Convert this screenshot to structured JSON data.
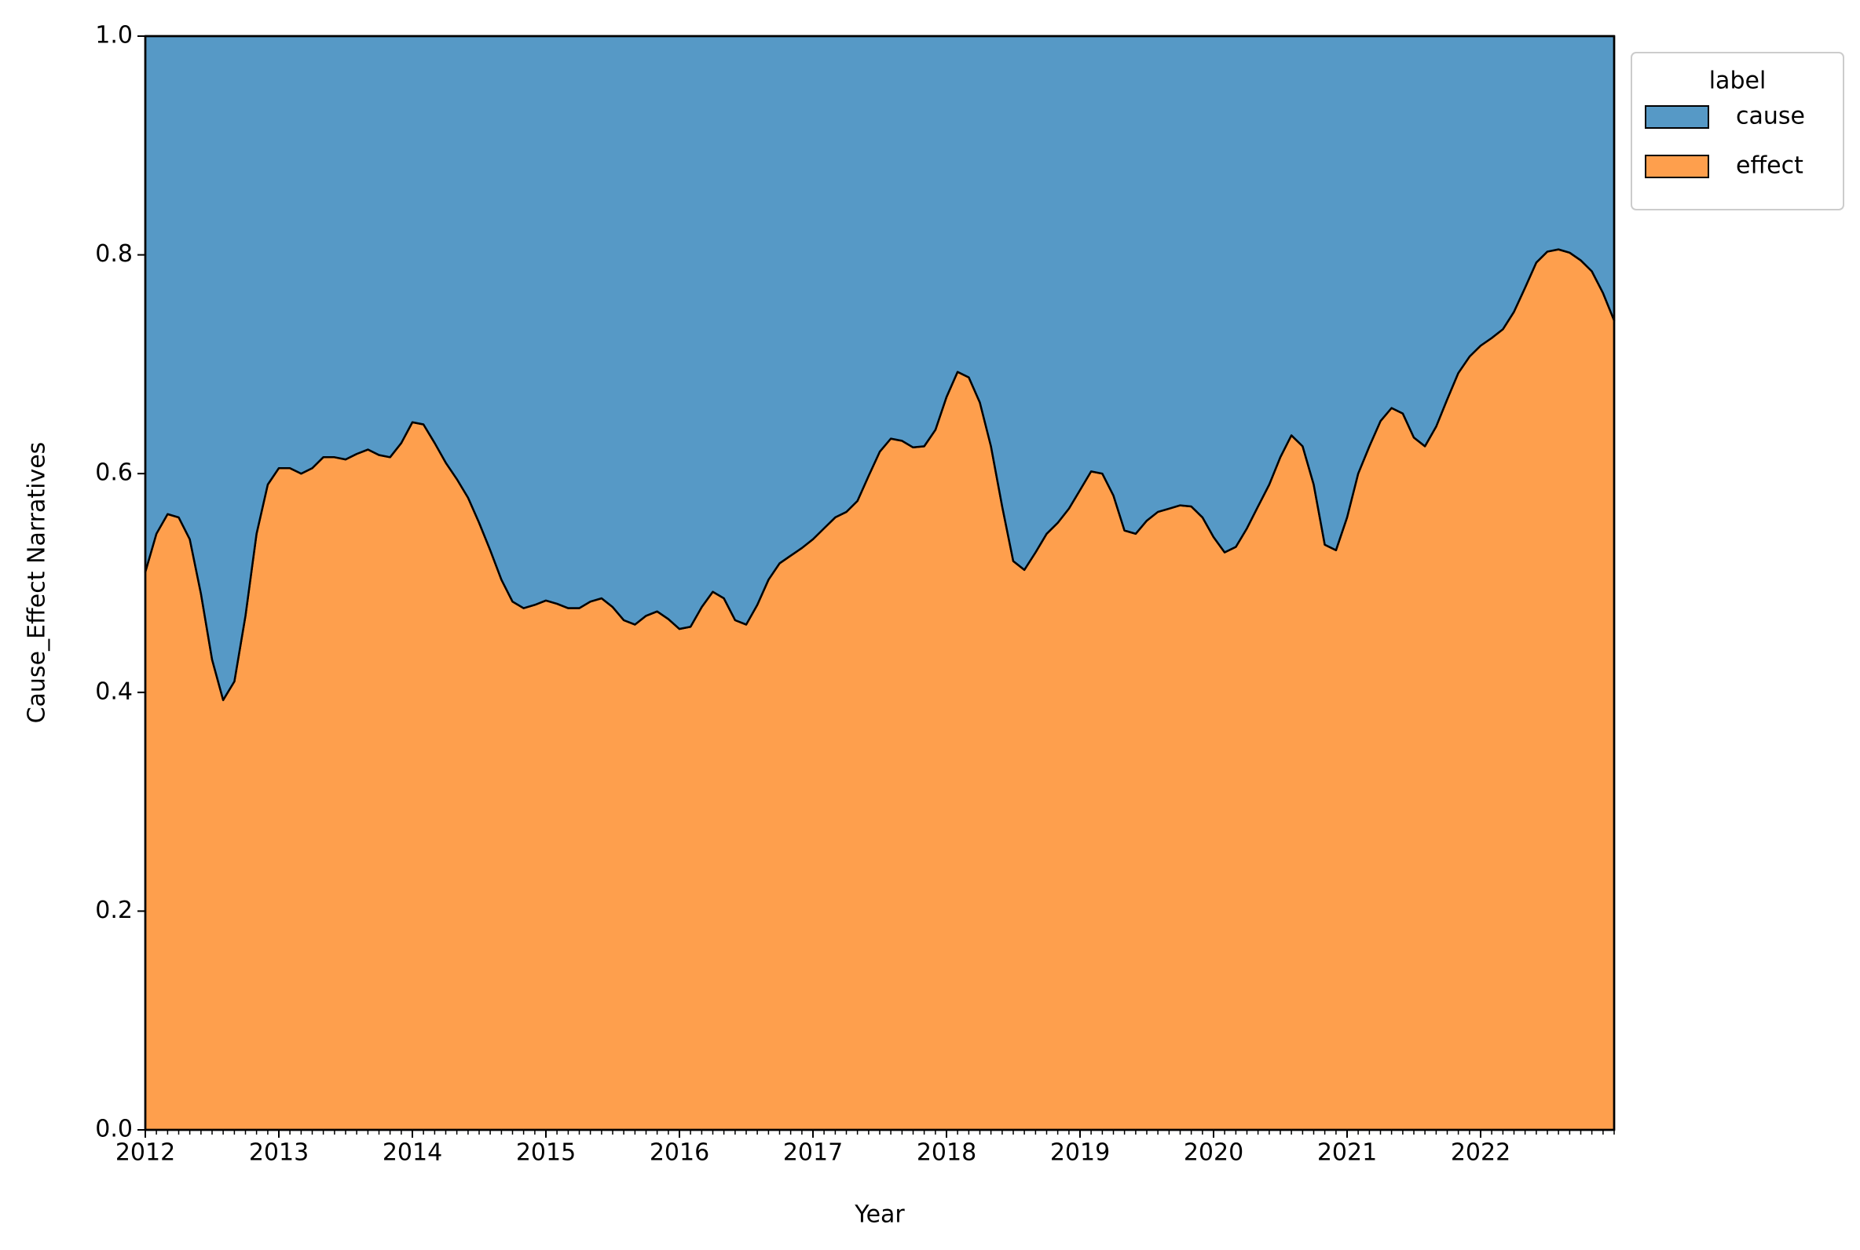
{
  "chart_data": {
    "type": "stacked_area",
    "xlabel": "Year",
    "ylabel": "Cause_Effect Narratives",
    "x": [
      2012,
      2012.083,
      2012.167,
      2012.25,
      2012.333,
      2012.417,
      2012.5,
      2012.583,
      2012.667,
      2012.75,
      2012.833,
      2012.917,
      2013,
      2013.083,
      2013.167,
      2013.25,
      2013.333,
      2013.417,
      2013.5,
      2013.583,
      2013.667,
      2013.75,
      2013.833,
      2013.917,
      2014,
      2014.083,
      2014.167,
      2014.25,
      2014.333,
      2014.417,
      2014.5,
      2014.583,
      2014.667,
      2014.75,
      2014.833,
      2014.917,
      2015,
      2015.083,
      2015.167,
      2015.25,
      2015.333,
      2015.417,
      2015.5,
      2015.583,
      2015.667,
      2015.75,
      2015.833,
      2015.917,
      2016,
      2016.083,
      2016.167,
      2016.25,
      2016.333,
      2016.417,
      2016.5,
      2016.583,
      2016.667,
      2016.75,
      2016.833,
      2016.917,
      2017,
      2017.083,
      2017.167,
      2017.25,
      2017.333,
      2017.417,
      2017.5,
      2017.583,
      2017.667,
      2017.75,
      2017.833,
      2017.917,
      2018,
      2018.083,
      2018.167,
      2018.25,
      2018.333,
      2018.417,
      2018.5,
      2018.583,
      2018.667,
      2018.75,
      2018.833,
      2018.917,
      2019,
      2019.083,
      2019.167,
      2019.25,
      2019.333,
      2019.417,
      2019.5,
      2019.583,
      2019.667,
      2019.75,
      2019.833,
      2019.917,
      2020,
      2020.083,
      2020.167,
      2020.25,
      2020.333,
      2020.417,
      2020.5,
      2020.583,
      2020.667,
      2020.75,
      2020.833,
      2020.917,
      2021,
      2021.083,
      2021.167,
      2021.25,
      2021.333,
      2021.417,
      2021.5,
      2021.583,
      2021.667,
      2021.75,
      2021.833,
      2021.917,
      2022,
      2022.083,
      2022.167,
      2022.25,
      2022.333,
      2022.417,
      2022.5,
      2022.583,
      2022.667,
      2022.75,
      2022.833,
      2022.917,
      2023
    ],
    "series": [
      {
        "name": "cause",
        "color": "#5699c6",
        "values": [
          0.49,
          0.455,
          0.437,
          0.44,
          0.46,
          0.51,
          0.57,
          0.607,
          0.59,
          0.53,
          0.455,
          0.41,
          0.395,
          0.395,
          0.4,
          0.395,
          0.385,
          0.385,
          0.387,
          0.382,
          0.378,
          0.383,
          0.385,
          0.372,
          0.353,
          0.355,
          0.372,
          0.39,
          0.405,
          0.422,
          0.445,
          0.47,
          0.497,
          0.517,
          0.523,
          0.52,
          0.516,
          0.519,
          0.523,
          0.523,
          0.517,
          0.514,
          0.522,
          0.534,
          0.538,
          0.53,
          0.526,
          0.533,
          0.542,
          0.54,
          0.522,
          0.508,
          0.514,
          0.534,
          0.538,
          0.52,
          0.497,
          0.482,
          0.475,
          0.468,
          0.46,
          0.45,
          0.44,
          0.435,
          0.425,
          0.402,
          0.38,
          0.368,
          0.37,
          0.376,
          0.375,
          0.36,
          0.33,
          0.307,
          0.312,
          0.335,
          0.375,
          0.43,
          0.48,
          0.488,
          0.472,
          0.455,
          0.445,
          0.432,
          0.415,
          0.398,
          0.4,
          0.42,
          0.452,
          0.455,
          0.443,
          0.435,
          0.432,
          0.429,
          0.43,
          0.44,
          0.458,
          0.472,
          0.467,
          0.45,
          0.43,
          0.41,
          0.385,
          0.365,
          0.375,
          0.41,
          0.465,
          0.47,
          0.44,
          0.4,
          0.375,
          0.352,
          0.34,
          0.345,
          0.367,
          0.375,
          0.357,
          0.332,
          0.308,
          0.293,
          0.283,
          0.276,
          0.268,
          0.252,
          0.23,
          0.207,
          0.197,
          0.195,
          0.198,
          0.205,
          0.215,
          0.235,
          0.26
        ]
      },
      {
        "name": "effect",
        "color": "#fe9f4d",
        "values": [
          0.51,
          0.545,
          0.563,
          0.56,
          0.54,
          0.49,
          0.43,
          0.393,
          0.41,
          0.47,
          0.545,
          0.59,
          0.605,
          0.605,
          0.6,
          0.605,
          0.615,
          0.615,
          0.613,
          0.618,
          0.622,
          0.617,
          0.615,
          0.628,
          0.647,
          0.645,
          0.628,
          0.61,
          0.595,
          0.578,
          0.555,
          0.53,
          0.503,
          0.483,
          0.477,
          0.48,
          0.484,
          0.481,
          0.477,
          0.477,
          0.483,
          0.486,
          0.478,
          0.466,
          0.462,
          0.47,
          0.474,
          0.467,
          0.458,
          0.46,
          0.478,
          0.492,
          0.486,
          0.466,
          0.462,
          0.48,
          0.503,
          0.518,
          0.525,
          0.532,
          0.54,
          0.55,
          0.56,
          0.565,
          0.575,
          0.598,
          0.62,
          0.632,
          0.63,
          0.624,
          0.625,
          0.64,
          0.67,
          0.693,
          0.688,
          0.665,
          0.625,
          0.57,
          0.52,
          0.512,
          0.528,
          0.545,
          0.555,
          0.568,
          0.585,
          0.602,
          0.6,
          0.58,
          0.548,
          0.545,
          0.557,
          0.565,
          0.568,
          0.571,
          0.57,
          0.56,
          0.542,
          0.528,
          0.533,
          0.55,
          0.57,
          0.59,
          0.615,
          0.635,
          0.625,
          0.59,
          0.535,
          0.53,
          0.56,
          0.6,
          0.625,
          0.648,
          0.66,
          0.655,
          0.633,
          0.625,
          0.643,
          0.668,
          0.692,
          0.707,
          0.717,
          0.724,
          0.732,
          0.748,
          0.77,
          0.793,
          0.803,
          0.805,
          0.802,
          0.795,
          0.785,
          0.765,
          0.74
        ]
      }
    ],
    "xlim": [
      2012,
      2023
    ],
    "xticks": [
      2012,
      2013,
      2014,
      2015,
      2016,
      2017,
      2018,
      2019,
      2020,
      2021,
      2022
    ],
    "ylim": [
      0,
      1
    ],
    "yticks": [
      {
        "value": 0,
        "label": "0.0"
      },
      0.2,
      0.4,
      0.6,
      0.8,
      {
        "value": 1,
        "label": "1.0"
      }
    ],
    "legend": {
      "title": "label",
      "position": "outside upper right"
    }
  }
}
